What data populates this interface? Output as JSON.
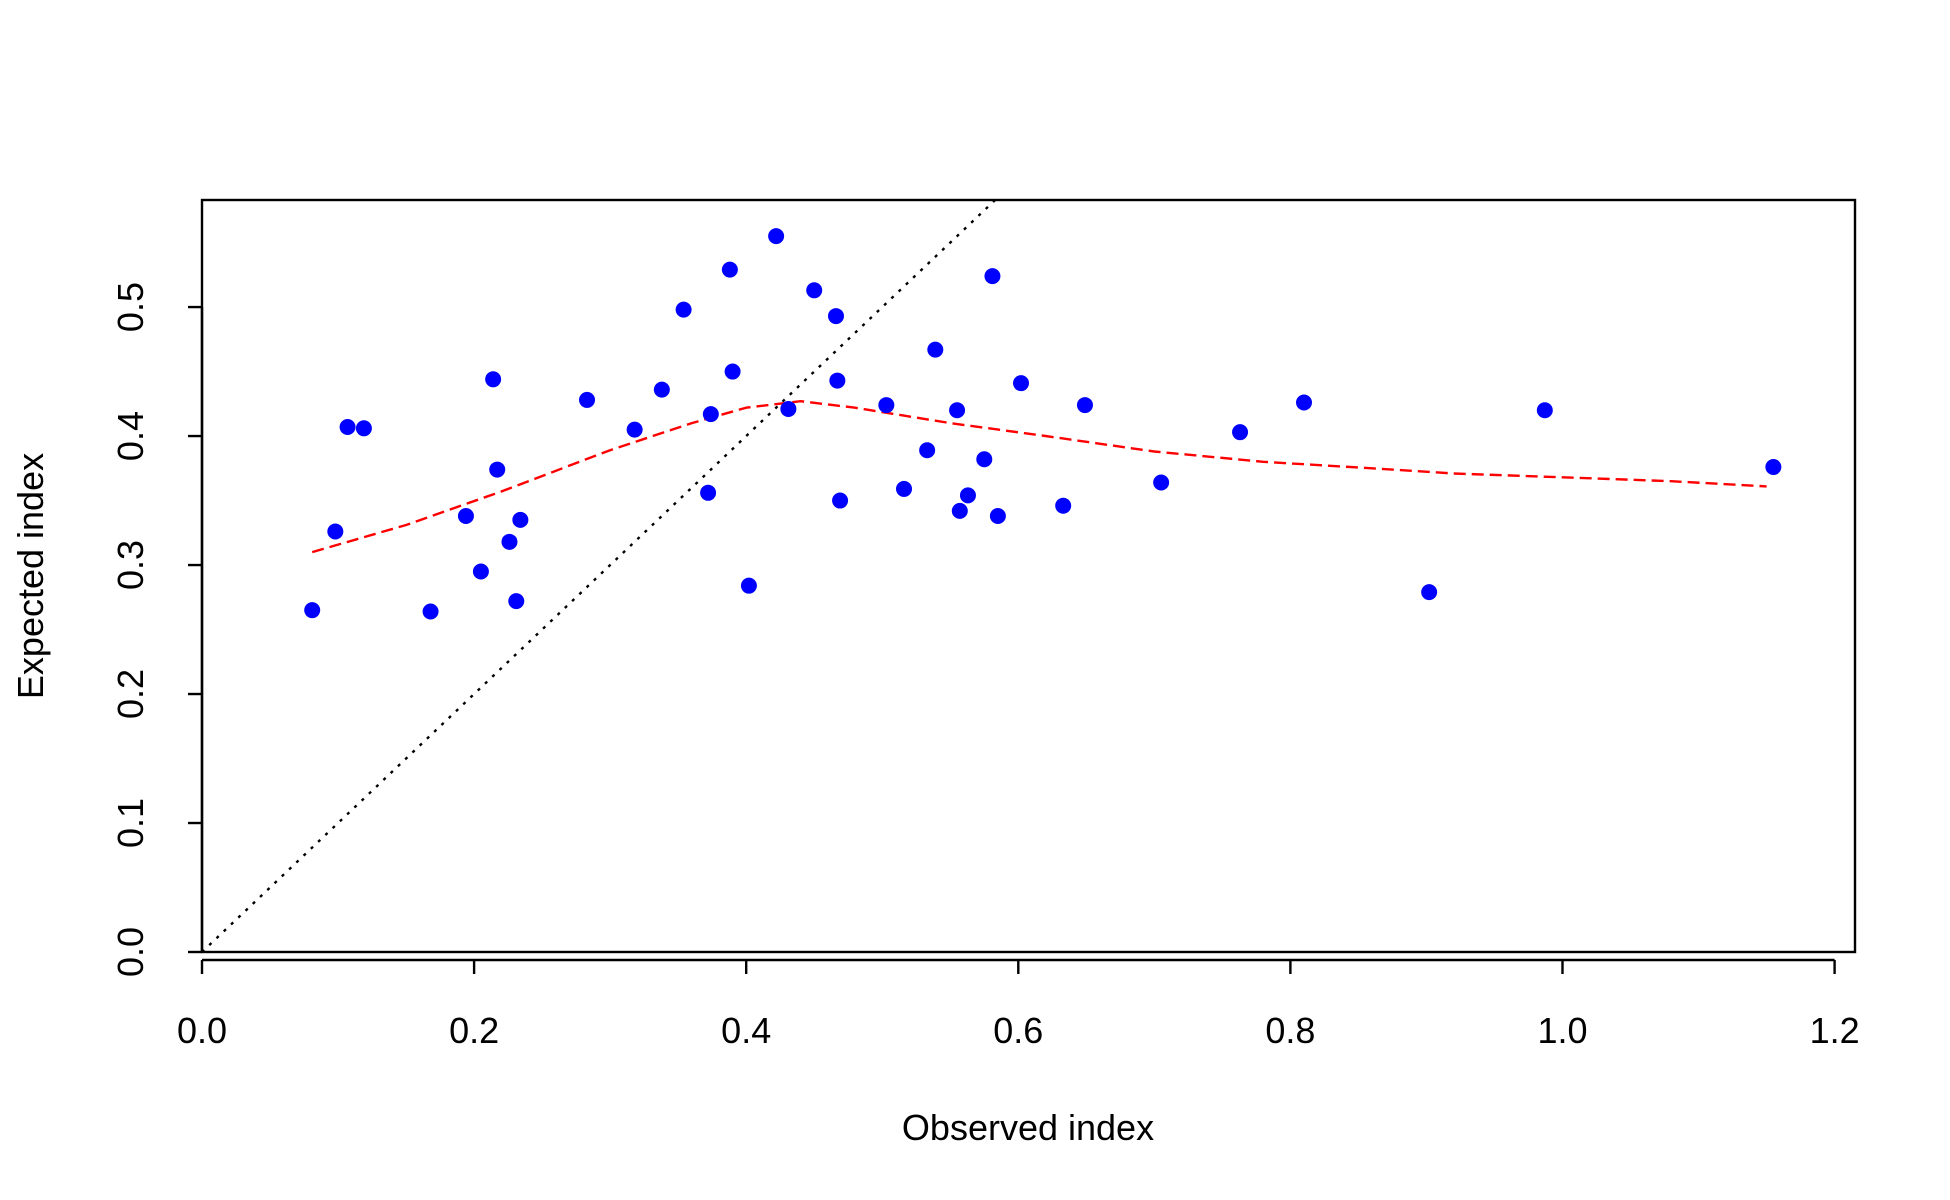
{
  "chart_data": {
    "type": "scatter",
    "title": "",
    "xlabel": "Observed index",
    "ylabel": "Expected index",
    "xlim": [
      0,
      1.215
    ],
    "ylim": [
      0,
      0.583
    ],
    "x_ticks": [
      0,
      0.2,
      0.4,
      0.6,
      0.8,
      1.0,
      1.2
    ],
    "x_tick_labels": [
      "0.0",
      "0.2",
      "0.4",
      "0.6",
      "0.8",
      "1.0",
      "1.2"
    ],
    "y_ticks": [
      0,
      0.1,
      0.2,
      0.3,
      0.4,
      0.5
    ],
    "y_tick_labels": [
      "0.0",
      "0.1",
      "0.2",
      "0.3",
      "0.4",
      "0.5"
    ],
    "grid": false,
    "legend": "none",
    "colors": {
      "points": "#0000ff",
      "smooth": "#ff0000",
      "identity": "#000000"
    },
    "points": {
      "x": [
        0.081,
        0.098,
        0.107,
        0.119,
        0.168,
        0.194,
        0.205,
        0.214,
        0.217,
        0.226,
        0.231,
        0.234,
        0.283,
        0.318,
        0.338,
        0.354,
        0.372,
        0.374,
        0.388,
        0.39,
        0.402,
        0.422,
        0.431,
        0.45,
        0.466,
        0.467,
        0.469,
        0.503,
        0.516,
        0.533,
        0.539,
        0.555,
        0.557,
        0.563,
        0.575,
        0.581,
        0.585,
        0.602,
        0.633,
        0.649,
        0.705,
        0.763,
        0.81,
        0.902,
        0.987,
        1.155
      ],
      "y": [
        0.265,
        0.326,
        0.407,
        0.406,
        0.264,
        0.338,
        0.295,
        0.444,
        0.374,
        0.318,
        0.272,
        0.335,
        0.428,
        0.405,
        0.436,
        0.498,
        0.356,
        0.417,
        0.529,
        0.45,
        0.284,
        0.555,
        0.421,
        0.513,
        0.493,
        0.443,
        0.35,
        0.424,
        0.359,
        0.389,
        0.467,
        0.42,
        0.342,
        0.354,
        0.382,
        0.524,
        0.338,
        0.441,
        0.346,
        0.424,
        0.364,
        0.403,
        0.426,
        0.279,
        0.42,
        0.376
      ]
    },
    "smooth": {
      "x": [
        0.081,
        0.15,
        0.22,
        0.3,
        0.36,
        0.4,
        0.44,
        0.48,
        0.55,
        0.62,
        0.7,
        0.78,
        0.86,
        0.92,
        1.0,
        1.08,
        1.15
      ],
      "y": [
        0.31,
        0.331,
        0.357,
        0.389,
        0.41,
        0.422,
        0.427,
        0.422,
        0.41,
        0.4,
        0.388,
        0.38,
        0.375,
        0.371,
        0.368,
        0.365,
        0.361
      ]
    },
    "identity": {
      "x": [
        0,
        0.58
      ],
      "y": [
        0,
        0.58
      ]
    }
  }
}
